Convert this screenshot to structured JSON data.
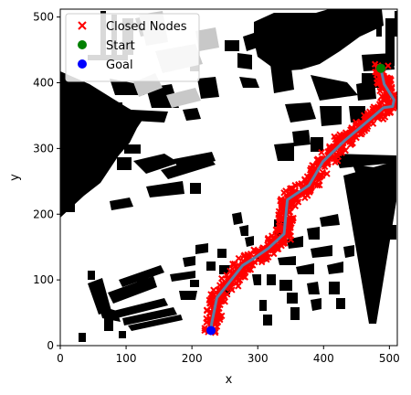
{
  "chart_data": {
    "type": "scatter",
    "xlabel": "x",
    "ylabel": "y",
    "xlim": [
      0,
      512
    ],
    "ylim": [
      0,
      512
    ],
    "xticks": [
      0,
      100,
      200,
      300,
      400,
      500
    ],
    "yticks": [
      0,
      100,
      200,
      300,
      400,
      500
    ],
    "grid": false,
    "legend_position": "top-left",
    "legend": [
      {
        "label": "Closed Nodes",
        "marker": "x",
        "color": "#ff0000"
      },
      {
        "label": "Start",
        "marker": "circle",
        "color": "#008000"
      },
      {
        "label": "Goal",
        "marker": "circle",
        "color": "#0000ff"
      }
    ],
    "start": [
      487,
      422
    ],
    "goal": [
      229,
      23
    ],
    "path": [
      [
        487,
        422
      ],
      [
        492,
        398
      ],
      [
        507,
        374
      ],
      [
        505,
        364
      ],
      [
        491,
        362
      ],
      [
        470,
        344
      ],
      [
        432,
        312
      ],
      [
        399,
        280
      ],
      [
        378,
        244
      ],
      [
        345,
        222
      ],
      [
        340,
        170
      ],
      [
        316,
        148
      ],
      [
        296,
        134
      ],
      [
        277,
        122
      ],
      [
        258,
        98
      ],
      [
        238,
        73
      ],
      [
        230,
        34
      ],
      [
        229,
        23
      ]
    ],
    "colors": {
      "obstacle": "#000000",
      "gray_obstacle": "#c8c8c8",
      "closed_nodes": "#ff0000",
      "path": "#5a7fa8"
    }
  }
}
